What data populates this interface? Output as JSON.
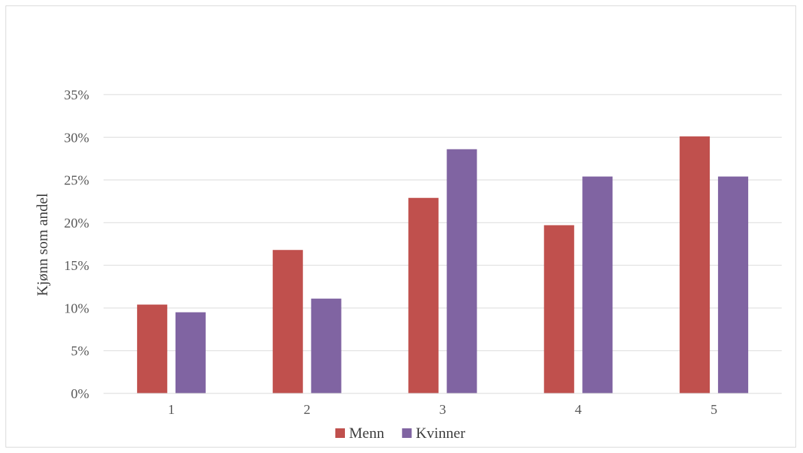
{
  "chart_data": {
    "type": "bar",
    "title": "",
    "xlabel": "",
    "ylabel": "Kjønn som andel",
    "categories": [
      "1",
      "2",
      "3",
      "4",
      "5"
    ],
    "ylim": [
      0,
      0.35
    ],
    "yticks": [
      0,
      0.05,
      0.1,
      0.15,
      0.2,
      0.25,
      0.3,
      0.35
    ],
    "ytick_labels": [
      "0%",
      "5%",
      "10%",
      "15%",
      "20%",
      "25%",
      "30%",
      "35%"
    ],
    "grid": true,
    "legend_position": "bottom",
    "series": [
      {
        "name": "Menn",
        "color": "#c0504d",
        "values": [
          0.104,
          0.168,
          0.229,
          0.197,
          0.301
        ]
      },
      {
        "name": "Kvinner",
        "color": "#8064a2",
        "values": [
          0.095,
          0.111,
          0.286,
          0.254,
          0.254
        ]
      }
    ]
  }
}
